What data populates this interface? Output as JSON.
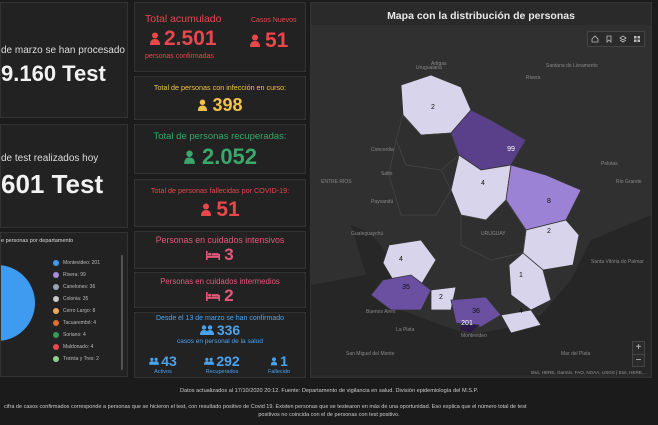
{
  "tests": {
    "left1_text": "de marzo se han procesado",
    "left1_value": "9.160 Test",
    "left2_text": "de test realizados hoy",
    "left2_value": "601 Test"
  },
  "totals": {
    "acumulado_label": "Total acumulado",
    "acumulado_value": "2.501",
    "acumulado_sub": "personas confirmadas",
    "nuevos_label": "Casos Nuevos",
    "nuevos_value": "51"
  },
  "infeccion": {
    "label": "Total de personas con infección en curso:",
    "value": "398"
  },
  "recuperadas": {
    "label": "Total de personas recuperadas:",
    "value": "2.052"
  },
  "fallecidas": {
    "label": "Total de personas fallecidas por COVID-19:",
    "value": "51"
  },
  "intensivos": {
    "label": "Personas en cuidados intensivos",
    "value": "3"
  },
  "intermedios": {
    "label": "Personas en cuidados intermedios",
    "value": "2"
  },
  "salud": {
    "line1": "Desde el 13 de marzo se han confirmado",
    "value": "336",
    "line2": "casos en personal de la salud",
    "activos_value": "43",
    "activos_label": "Activos",
    "recuperados_value": "292",
    "recuperados_label": "Recuperados",
    "fallecido_value": "1",
    "fallecido_label": "Fallecido"
  },
  "departamentos": {
    "title": "e personas por departamento",
    "items": [
      {
        "label": "Montevideo: 201",
        "color": "#3f9bf0"
      },
      {
        "label": "Rivera: 99",
        "color": "#a98ce0"
      },
      {
        "label": "Canelones: 36",
        "color": "#9aa6b4"
      },
      {
        "label": "Colonia: 35",
        "color": "#c9c9c9"
      },
      {
        "label": "Cerro Largo: 8",
        "color": "#f0a85a"
      },
      {
        "label": "Tacuarembó: 4",
        "color": "#e07030"
      },
      {
        "label": "Soriano: 4",
        "color": "#3a9a5a"
      },
      {
        "label": "Maldonado: 4",
        "color": "#e8474b"
      },
      {
        "label": "Treinta y Tres: 2",
        "color": "#8fd18f"
      }
    ]
  },
  "map": {
    "title": "Mapa con la distribución de personas",
    "attribution": "Esri, HERE, Garmin, FAO, NOAA, USGS | Esri, HERE,...",
    "zoom_in": "+",
    "zoom_out": "−",
    "places": [
      "Uruguaiana",
      "Santana do Livramento",
      "Rivera",
      "Concordia",
      "ENTRE RÍOS",
      "Gualeguaychú",
      "Buenos Aires",
      "La Plata",
      "San Miguel del Monte",
      "Pelotas",
      "Rio Grande",
      "Santa Vitória do Palmar",
      "Mar del Plata",
      "URUGUAY",
      "Artigas",
      "Salto",
      "Paysandú",
      "Montevideo"
    ],
    "dept_counts": [
      "2",
      "99",
      "4",
      "8",
      "2",
      "4",
      "1",
      "35",
      "2",
      "36",
      "201",
      "4"
    ]
  },
  "footer": {
    "line1": "Datos actualizados al 17/10/2020 20:12. Fuente: Departamento de vigilancia en salud. División epidemiología del M.S.P.",
    "line2": "cifra de casos confirmados corresponde a personas que se hicieron el test, con resultado positivo de Covid 19. Existen personas que se testearon en más de una oportunidad. Eso explica que el número total de test",
    "line3": "positivos no coincida con el de personas con test positivo."
  }
}
